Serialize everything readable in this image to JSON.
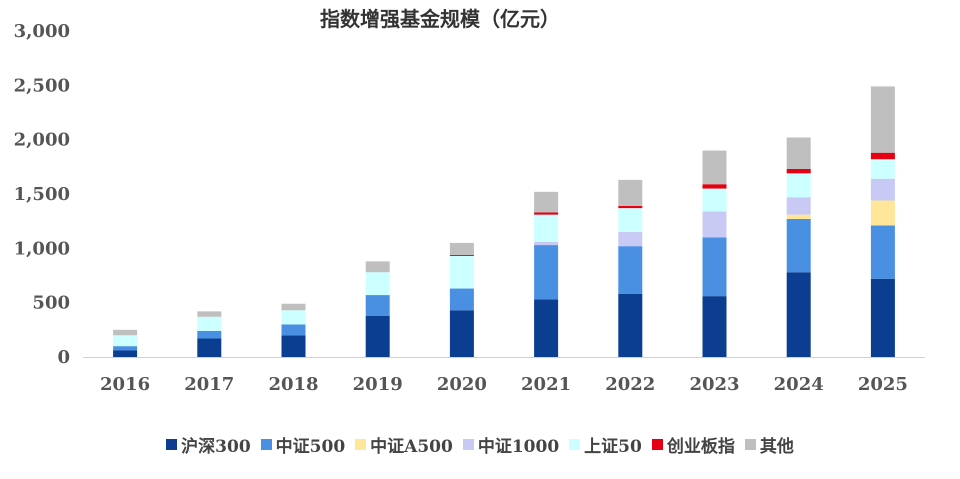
{
  "chart_data": {
    "type": "bar",
    "stacked": true,
    "title": "指数增强基金规模（亿元）",
    "xlabel": "",
    "ylabel": "",
    "ylim": [
      0,
      3000
    ],
    "yticks": [
      0,
      500,
      1000,
      1500,
      2000,
      2500,
      3000
    ],
    "ytick_labels": [
      "0",
      "500",
      "1,000",
      "1,500",
      "2,000",
      "2,500",
      "3,000"
    ],
    "categories": [
      "2016",
      "2017",
      "2018",
      "2019",
      "2020",
      "2021",
      "2022",
      "2023",
      "2024",
      "2025"
    ],
    "legend_position": "bottom",
    "series": [
      {
        "name": "沪深300",
        "color": "#0B3D91",
        "values": [
          60,
          170,
          200,
          380,
          430,
          530,
          580,
          560,
          780,
          720
        ]
      },
      {
        "name": "中证500",
        "color": "#4A90E2",
        "values": [
          40,
          70,
          100,
          190,
          200,
          500,
          440,
          540,
          490,
          490
        ]
      },
      {
        "name": "中证A500",
        "color": "#FFE699",
        "values": [
          0,
          0,
          0,
          0,
          0,
          0,
          0,
          0,
          40,
          230
        ]
      },
      {
        "name": "中证1000",
        "color": "#C9C9F5",
        "values": [
          0,
          0,
          0,
          0,
          0,
          30,
          130,
          240,
          160,
          200
        ]
      },
      {
        "name": "上证50",
        "color": "#CCFFFF",
        "values": [
          100,
          130,
          130,
          210,
          300,
          250,
          220,
          210,
          220,
          180
        ]
      },
      {
        "name": "创业板指",
        "color": "#E60012",
        "values": [
          0,
          0,
          0,
          0,
          10,
          20,
          20,
          40,
          40,
          60
        ]
      },
      {
        "name": "其他",
        "color": "#BFBFBF",
        "values": [
          50,
          50,
          60,
          100,
          110,
          190,
          240,
          310,
          290,
          610
        ]
      }
    ]
  }
}
